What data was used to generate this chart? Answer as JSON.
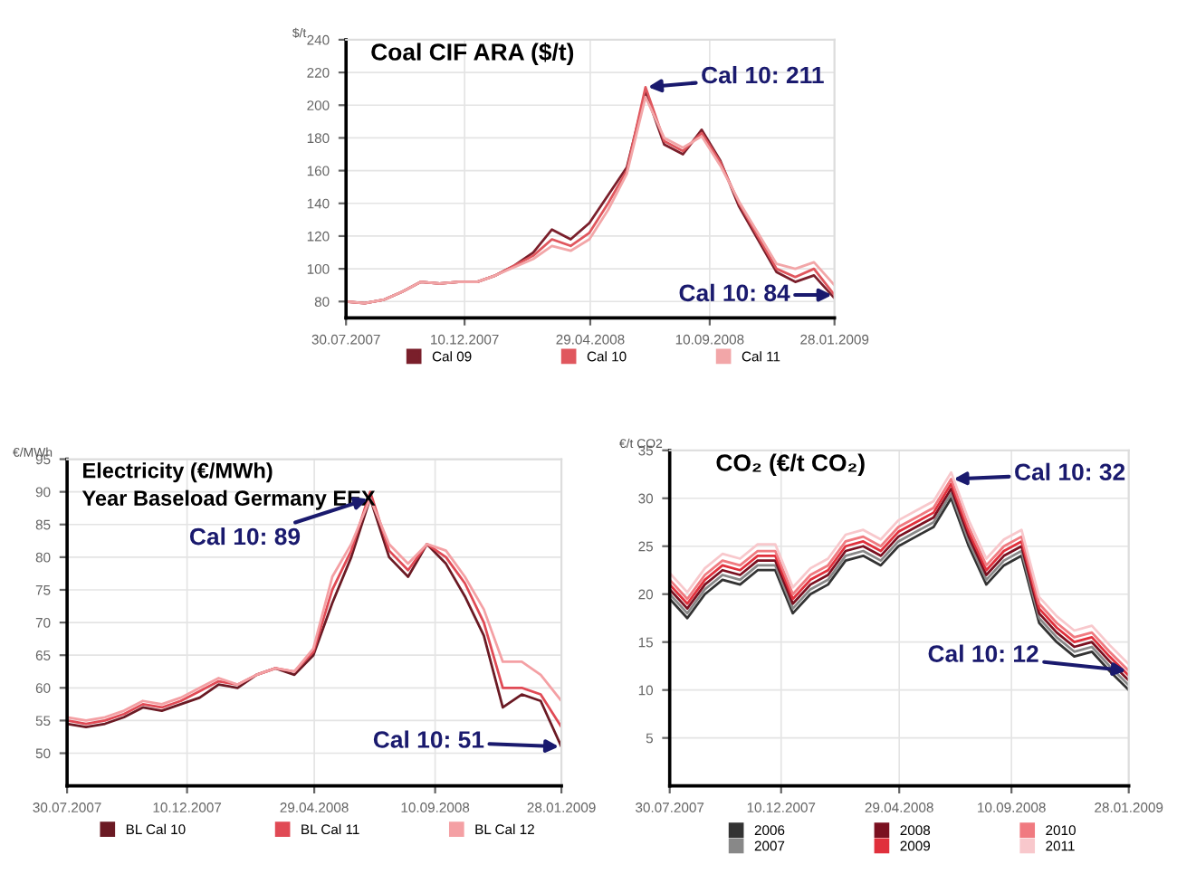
{
  "chart_data": [
    {
      "type": "line",
      "title": "Coal CIF ARA ($/t)",
      "ylabel": "$/t",
      "grid": true,
      "legend": "bottom",
      "x": [
        "2007-07-30",
        "2007-08-20",
        "2007-09-10",
        "2007-10-01",
        "2007-10-22",
        "2007-11-12",
        "2007-12-03",
        "2007-12-24",
        "2008-01-14",
        "2008-02-04",
        "2008-02-25",
        "2008-03-17",
        "2008-04-07",
        "2008-04-28",
        "2008-05-19",
        "2008-06-09",
        "2008-06-30",
        "2008-07-21",
        "2008-08-11",
        "2008-09-01",
        "2008-09-22",
        "2008-10-13",
        "2008-11-03",
        "2008-11-24",
        "2008-12-15",
        "2009-01-05",
        "2009-01-28"
      ],
      "xlim": [
        "2007-07-30",
        "2009-01-28"
      ],
      "xticks": [
        {
          "value": "2007-07-30",
          "label": "30.07.2007"
        },
        {
          "value": "2007-12-10",
          "label": "10.12.2007"
        },
        {
          "value": "2008-04-29",
          "label": "29.04.2008"
        },
        {
          "value": "2008-09-10",
          "label": "10.09.2008"
        },
        {
          "value": "2009-01-28",
          "label": "28.01.2009"
        }
      ],
      "ylim": [
        70,
        240
      ],
      "yticks": [
        80,
        100,
        120,
        140,
        160,
        180,
        200,
        220,
        240
      ],
      "series": [
        {
          "name": "Cal 09",
          "color": "#7a1f2b",
          "values": [
            80,
            79,
            81,
            86,
            92,
            91,
            92,
            92,
            96,
            102,
            110,
            124,
            118,
            128,
            145,
            162,
            208,
            176,
            170,
            185,
            166,
            138,
            118,
            98,
            92,
            96,
            82
          ]
        },
        {
          "name": "Cal 10",
          "color": "#e0575e",
          "values": [
            80,
            79,
            81,
            86,
            92,
            91,
            92,
            92,
            96,
            102,
            108,
            118,
            114,
            122,
            140,
            160,
            211,
            178,
            172,
            183,
            165,
            140,
            120,
            100,
            95,
            100,
            84
          ]
        },
        {
          "name": "Cal 11",
          "color": "#f2a6a8",
          "values": [
            80,
            79,
            81,
            86,
            92,
            91,
            92,
            92,
            96,
            101,
            106,
            114,
            111,
            118,
            136,
            158,
            205,
            180,
            174,
            181,
            163,
            141,
            122,
            103,
            100,
            104,
            90
          ]
        }
      ],
      "annotations": [
        {
          "text": "Cal 10: 211",
          "x": "2008-06-30",
          "y": 211
        },
        {
          "text": "Cal 10: 84",
          "x": "2009-01-28",
          "y": 84
        }
      ]
    },
    {
      "type": "line",
      "title": "Electricity (€/MWh)\nYear Baseload Germany EEX",
      "ylabel": "€/MWh",
      "grid": true,
      "legend": "bottom",
      "x": [
        "2007-07-30",
        "2007-08-20",
        "2007-09-10",
        "2007-10-01",
        "2007-10-22",
        "2007-11-12",
        "2007-12-03",
        "2007-12-24",
        "2008-01-14",
        "2008-02-04",
        "2008-02-25",
        "2008-03-17",
        "2008-04-07",
        "2008-04-28",
        "2008-05-19",
        "2008-06-09",
        "2008-06-30",
        "2008-07-21",
        "2008-08-11",
        "2008-09-01",
        "2008-09-22",
        "2008-10-13",
        "2008-11-03",
        "2008-11-24",
        "2008-12-15",
        "2009-01-05",
        "2009-01-28"
      ],
      "xlim": [
        "2007-07-30",
        "2009-01-28"
      ],
      "xticks": [
        {
          "value": "2007-07-30",
          "label": "30.07.2007"
        },
        {
          "value": "2007-12-10",
          "label": "10.12.2007"
        },
        {
          "value": "2008-04-29",
          "label": "29.04.2008"
        },
        {
          "value": "2008-09-10",
          "label": "10.09.2008"
        },
        {
          "value": "2009-01-28",
          "label": "28.01.2009"
        }
      ],
      "ylim": [
        45,
        95
      ],
      "yticks": [
        50,
        55,
        60,
        65,
        70,
        75,
        80,
        85,
        90,
        95
      ],
      "series": [
        {
          "name": "BL Cal 10",
          "color": "#6b1a24",
          "values": [
            54.5,
            54,
            54.5,
            55.5,
            57,
            56.5,
            57.5,
            58.5,
            60.5,
            60,
            62,
            63,
            62,
            65,
            73,
            80,
            89,
            80,
            77,
            82,
            79,
            74,
            68,
            57,
            59,
            58,
            51
          ]
        },
        {
          "name": "BL Cal 11",
          "color": "#e04a55",
          "values": [
            55,
            54.5,
            55,
            56,
            57.5,
            57,
            58,
            59.5,
            61,
            60.5,
            62,
            63,
            62.5,
            65.5,
            75,
            81,
            90,
            81,
            78,
            82,
            80,
            76,
            70,
            60,
            60,
            59,
            54
          ]
        },
        {
          "name": "BL Cal 12",
          "color": "#f4a0a4",
          "values": [
            55.5,
            55,
            55.5,
            56.5,
            58,
            57.5,
            58.5,
            60,
            61.5,
            60.5,
            62,
            63,
            62.5,
            66,
            77,
            82,
            89,
            82,
            79,
            82,
            81,
            77,
            72,
            64,
            64,
            62,
            58
          ]
        }
      ],
      "annotations": [
        {
          "text": "Cal 10: 89",
          "x": "2008-06-30",
          "y": 89
        },
        {
          "text": "Cal 10: 51",
          "x": "2009-01-28",
          "y": 51
        }
      ]
    },
    {
      "type": "line",
      "title": "CO₂ (€/t CO₂)",
      "ylabel": "€/t CO2",
      "grid": true,
      "legend": "bottom",
      "x": [
        "2007-07-30",
        "2007-08-20",
        "2007-09-10",
        "2007-10-01",
        "2007-10-22",
        "2007-11-12",
        "2007-12-03",
        "2007-12-24",
        "2008-01-14",
        "2008-02-04",
        "2008-02-25",
        "2008-03-17",
        "2008-04-07",
        "2008-04-28",
        "2008-05-19",
        "2008-06-09",
        "2008-06-30",
        "2008-07-21",
        "2008-08-11",
        "2008-09-01",
        "2008-09-22",
        "2008-10-13",
        "2008-11-03",
        "2008-11-24",
        "2008-12-15",
        "2009-01-05",
        "2009-01-28"
      ],
      "xlim": [
        "2007-07-30",
        "2009-01-28"
      ],
      "xticks": [
        {
          "value": "2007-07-30",
          "label": "30.07.2007"
        },
        {
          "value": "2007-12-10",
          "label": "10.12.2007"
        },
        {
          "value": "2008-04-29",
          "label": "29.04.2008"
        },
        {
          "value": "2008-09-10",
          "label": "10.09.2008"
        },
        {
          "value": "2009-01-28",
          "label": "28.01.2009"
        }
      ],
      "ylim": [
        0,
        35
      ],
      "yticks": [
        5,
        10,
        15,
        20,
        25,
        30,
        35
      ],
      "series": [
        {
          "name": "2006",
          "color": "#333333",
          "values": [
            19.5,
            17.5,
            20,
            21.5,
            21,
            22.5,
            22.5,
            18,
            20,
            21,
            23.5,
            24,
            23,
            25,
            26,
            27,
            30,
            25,
            21,
            23,
            24,
            17,
            15,
            13.5,
            14,
            12,
            10
          ]
        },
        {
          "name": "2007",
          "color": "#888888",
          "values": [
            20,
            18,
            20.5,
            22,
            21.5,
            23,
            23,
            18.5,
            20.5,
            21.5,
            24,
            24.5,
            23.5,
            25.5,
            26.5,
            27.5,
            30.5,
            25.5,
            21.5,
            23.5,
            24.5,
            17.5,
            15.5,
            14,
            14.5,
            12.5,
            10.5
          ]
        },
        {
          "name": "2008",
          "color": "#7a1020",
          "values": [
            20.5,
            18.5,
            21,
            22.5,
            22,
            23.5,
            23.5,
            19,
            21,
            22,
            24.5,
            25,
            24,
            26,
            27,
            28,
            31,
            26,
            22,
            24,
            25,
            18,
            16,
            14.5,
            15,
            13,
            11
          ]
        },
        {
          "name": "2009",
          "color": "#e0303c",
          "values": [
            21,
            19,
            21.5,
            23,
            22.5,
            24,
            24,
            19.5,
            21.5,
            22.5,
            25,
            25.5,
            24.5,
            26.5,
            27.5,
            28.5,
            31.5,
            26.5,
            22.5,
            24.5,
            25.5,
            18.5,
            16.5,
            15,
            15.5,
            13.5,
            11.5
          ]
        },
        {
          "name": "2010",
          "color": "#f07a80",
          "values": [
            21.5,
            19.5,
            22,
            23.5,
            23,
            24.5,
            24.5,
            20,
            22,
            23,
            25.5,
            26,
            25,
            27,
            28,
            29,
            32,
            27,
            23,
            25,
            26,
            19,
            17,
            15.5,
            16,
            14,
            12
          ]
        },
        {
          "name": "2011",
          "color": "#f8c8cc",
          "values": [
            22.2,
            20.2,
            22.7,
            24.2,
            23.7,
            25.2,
            25.2,
            20.7,
            22.7,
            23.7,
            26.2,
            26.7,
            25.7,
            27.7,
            28.7,
            29.7,
            32.7,
            27.7,
            23.7,
            25.7,
            26.7,
            19.7,
            17.7,
            16.2,
            16.7,
            14.7,
            12.7
          ]
        }
      ],
      "annotations": [
        {
          "text": "Cal 10: 32",
          "x": "2008-06-30",
          "y": 32
        },
        {
          "text": "Cal 10: 12",
          "x": "2009-01-28",
          "y": 12
        }
      ]
    }
  ]
}
